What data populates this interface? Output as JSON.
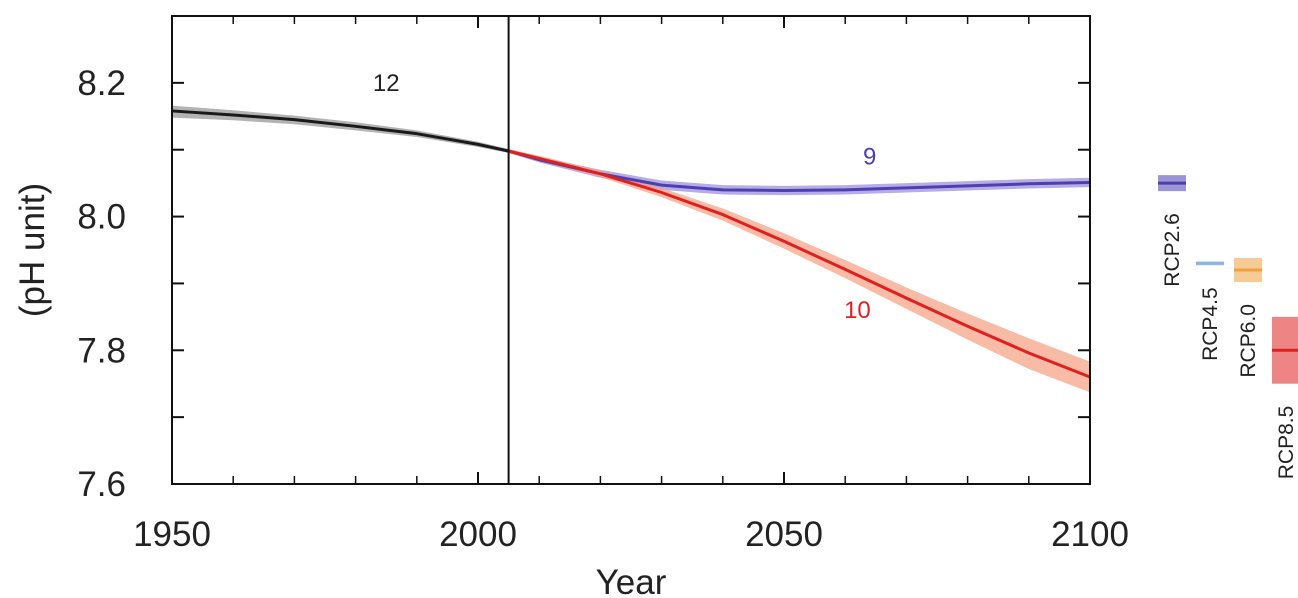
{
  "chart_data": {
    "type": "line",
    "title": "",
    "xlabel": "Year",
    "ylabel": "(pH unit)",
    "xlim": [
      1950,
      2100
    ],
    "ylim": [
      7.6,
      8.3
    ],
    "x_ticks": [
      1950,
      2000,
      2050,
      2100
    ],
    "x_tick_labels": [
      "1950",
      "2000",
      "2050",
      "2100"
    ],
    "y_ticks": [
      7.6,
      7.8,
      8.0,
      8.2
    ],
    "y_tick_labels": [
      "7.6",
      "7.8",
      "8.0",
      "8.2"
    ],
    "x_minor_ticks": [
      1960,
      1970,
      1980,
      1990,
      2010,
      2020,
      2030,
      2040,
      2060,
      2070,
      2080,
      2090
    ],
    "y_minor_ticks": [
      7.7,
      7.9,
      8.1
    ],
    "divider_year": 2005,
    "grid": false,
    "series": [
      {
        "color": "#1a1a1a",
        "band_color": "#9a9a9a",
        "x": [
          1950,
          1960,
          1970,
          1980,
          1990,
          2000,
          2005
        ],
        "y": [
          8.158,
          8.152,
          8.145,
          8.135,
          8.124,
          8.108,
          8.098
        ],
        "lower": [
          8.148,
          8.144,
          8.138,
          8.129,
          8.119,
          8.104,
          8.095
        ],
        "upper": [
          8.166,
          8.159,
          8.151,
          8.141,
          8.129,
          8.112,
          8.101
        ],
        "annotation": "12",
        "annotation_x": 1985,
        "annotation_y": 8.2
      },
      {
        "color": "#4c3fb0",
        "band_color": "#9f8fe0",
        "x": [
          2005,
          2010,
          2020,
          2030,
          2040,
          2050,
          2060,
          2070,
          2080,
          2090,
          2100
        ],
        "y": [
          8.098,
          8.085,
          8.064,
          8.047,
          8.04,
          8.039,
          8.04,
          8.043,
          8.046,
          8.049,
          8.051
        ],
        "lower": [
          8.095,
          8.081,
          8.058,
          8.04,
          8.033,
          8.032,
          8.033,
          8.036,
          8.039,
          8.042,
          8.044
        ],
        "upper": [
          8.101,
          8.089,
          8.07,
          8.054,
          8.047,
          8.046,
          8.047,
          8.05,
          8.053,
          8.056,
          8.058
        ],
        "annotation": "9",
        "annotation_x": 2064,
        "annotation_y": 8.09
      },
      {
        "color": "#e02020",
        "band_color": "#f6a488",
        "x": [
          2005,
          2010,
          2020,
          2030,
          2040,
          2050,
          2060,
          2070,
          2080,
          2090,
          2100
        ],
        "y": [
          8.098,
          8.087,
          8.064,
          8.036,
          8.003,
          7.963,
          7.921,
          7.878,
          7.836,
          7.796,
          7.76
        ],
        "lower": [
          8.095,
          8.083,
          8.059,
          8.029,
          7.994,
          7.952,
          7.908,
          7.862,
          7.816,
          7.772,
          7.737
        ],
        "upper": [
          8.101,
          8.091,
          8.069,
          8.043,
          8.012,
          7.975,
          7.935,
          7.894,
          7.855,
          7.818,
          7.783
        ],
        "annotation": "10",
        "annotation_x": 2062,
        "annotation_y": 7.86
      }
    ],
    "legend": {
      "placement": "right",
      "entries": [
        {
          "label": "RCP2.6",
          "color": "#4c3fb0",
          "value": 8.05,
          "spread": 0.012
        },
        {
          "label": "RCP4.5",
          "color": "#8ab4e8",
          "value": 7.93,
          "spread": 0.002
        },
        {
          "label": "RCP6.0",
          "color": "#f0a040",
          "value": 7.92,
          "spread": 0.018
        },
        {
          "label": "RCP8.5",
          "color": "#e02020",
          "value": 7.8,
          "spread": 0.05
        }
      ]
    }
  }
}
